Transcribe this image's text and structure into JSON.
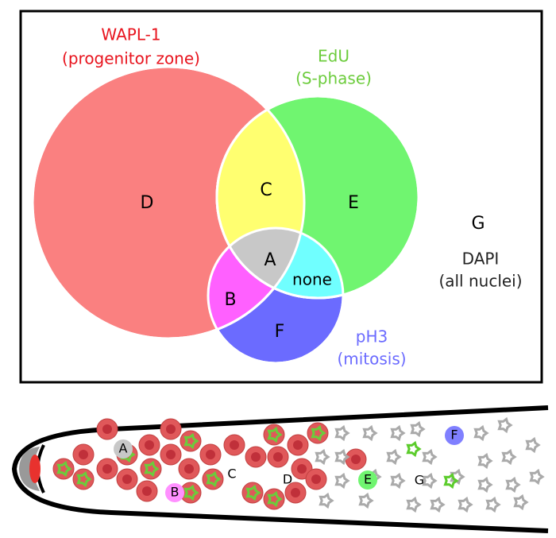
{
  "venn": {
    "sets": [
      {
        "label": "WAPL-1",
        "sublabel": "(progenitor zone)"
      },
      {
        "label": "EdU",
        "sublabel": "(S-phase)"
      },
      {
        "label": "pH3",
        "sublabel": "(mitosis)"
      },
      {
        "label": "DAPI",
        "sublabel": "(all nuclei)"
      }
    ],
    "regions": {
      "D": "D",
      "C": "C",
      "E": "E",
      "A": "A",
      "none": "none",
      "B": "B",
      "F": "F",
      "G": "G"
    }
  },
  "gonad": {
    "labels": [
      "A",
      "B",
      "C",
      "D",
      "E",
      "F",
      "G"
    ]
  }
}
